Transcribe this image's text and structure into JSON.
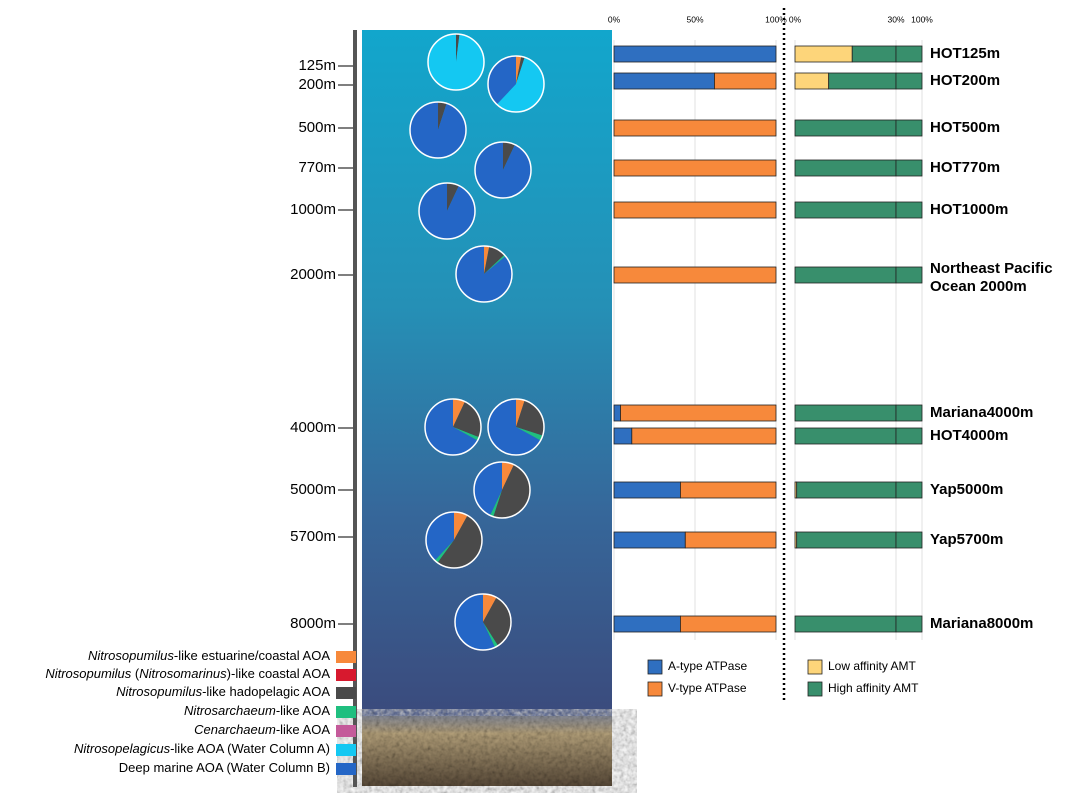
{
  "chart_data": [
    {
      "type": "pie",
      "depth_labels": [
        "125m",
        "200m",
        "500m",
        "770m",
        "1000m",
        "2000m",
        "4000m",
        "5000m",
        "5700m",
        "8000m"
      ],
      "series": [
        {
          "name": [
            {
              "text": "Nitrosopumilus",
              "italic": true
            },
            {
              "text": "-like estuarine/coastal AOA",
              "italic": false
            }
          ],
          "color": "#f7893b"
        },
        {
          "name": [
            {
              "text": "Nitrosopumilus",
              "italic": true
            },
            {
              "text": " (",
              "italic": false
            },
            {
              "text": "Nitrosomarinus",
              "italic": true
            },
            {
              "text": ")-like coastal AOA",
              "italic": false
            }
          ],
          "color": "#d7192e"
        },
        {
          "name": [
            {
              "text": "Nitrosopumilus",
              "italic": true
            },
            {
              "text": "-like hadopelagic AOA",
              "italic": false
            }
          ],
          "color": "#4a4a4a"
        },
        {
          "name": [
            {
              "text": "Nitrosarchaeum",
              "italic": true
            },
            {
              "text": "-like AOA",
              "italic": false
            }
          ],
          "color": "#1fbf7f"
        },
        {
          "name": [
            {
              "text": "Cenarchaeum",
              "italic": true
            },
            {
              "text": "-like AOA",
              "italic": false
            }
          ],
          "color": "#c45a9a"
        },
        {
          "name": [
            {
              "text": "Nitrosopelagicus",
              "italic": true
            },
            {
              "text": "-like AOA (Water Column A)",
              "italic": false
            }
          ],
          "color": "#14c8f2"
        },
        {
          "name": [
            {
              "text": "Deep marine AOA (Water Column B)",
              "italic": false
            }
          ],
          "color": "#2466c6"
        }
      ],
      "pies": [
        [
          0,
          0,
          2,
          0,
          0,
          98,
          0
        ],
        [
          3,
          0,
          2,
          0,
          0,
          57,
          38
        ],
        [
          0,
          0,
          5,
          0,
          0,
          0,
          95
        ],
        [
          0,
          0,
          7,
          0,
          0,
          0,
          93
        ],
        [
          0,
          0,
          7,
          0,
          0,
          0,
          93
        ],
        [
          3,
          0,
          10,
          1,
          0,
          0,
          86
        ],
        [
          7,
          0,
          24,
          2,
          0,
          0,
          67
        ],
        [
          5,
          0,
          25,
          3,
          0,
          0,
          67
        ],
        [
          7,
          0,
          48,
          2,
          0,
          0,
          43
        ],
        [
          8,
          0,
          52,
          2,
          0,
          0,
          38
        ],
        [
          8,
          0,
          33,
          2,
          0,
          0,
          57
        ]
      ]
    },
    {
      "type": "bar",
      "orientation": "horizontal",
      "stacked": true,
      "categories": [
        "HOT125m",
        "HOT200m",
        "HOT500m",
        "HOT770m",
        "HOT1000m",
        "Northeast Pacific Ocean 2000m",
        "Mariana4000m",
        "HOT4000m",
        "Yap5000m",
        "Yap5700m",
        "Mariana8000m"
      ],
      "series": [
        {
          "name": "A-type ATPase",
          "color": "#2f6fc0",
          "values": [
            100,
            62,
            0,
            0,
            0,
            0,
            4,
            11,
            41,
            44,
            41
          ]
        },
        {
          "name": "V-type ATPase",
          "color": "#f7893b",
          "values": [
            0,
            38,
            100,
            100,
            100,
            100,
            96,
            89,
            59,
            56,
            59
          ]
        }
      ],
      "xlim": [
        0,
        100
      ],
      "xticks": [
        {
          "value": 0,
          "label": "0%"
        },
        {
          "value": 50,
          "label": "50%"
        },
        {
          "value": 100,
          "label": "100%"
        }
      ],
      "grid": true
    },
    {
      "type": "bar",
      "orientation": "horizontal",
      "stacked": true,
      "series": [
        {
          "name": "Low affinity AMT",
          "color": "#fdd57a",
          "values": [
            17,
            10,
            0,
            0,
            0,
            0,
            0,
            0,
            0.5,
            0.5,
            0
          ]
        },
        {
          "name": "High affinity AMT",
          "color": "#388f6c",
          "values": [
            83,
            90,
            100,
            100,
            100,
            100,
            100,
            100,
            99.5,
            99.5,
            100
          ]
        }
      ],
      "xlim": [
        0,
        100
      ],
      "xbreak": 30,
      "xticks": [
        {
          "value": 0,
          "label": "0%"
        },
        {
          "value": 30,
          "label": "30%"
        },
        {
          "value": 100,
          "label": "100%"
        }
      ],
      "grid": true
    }
  ]
}
